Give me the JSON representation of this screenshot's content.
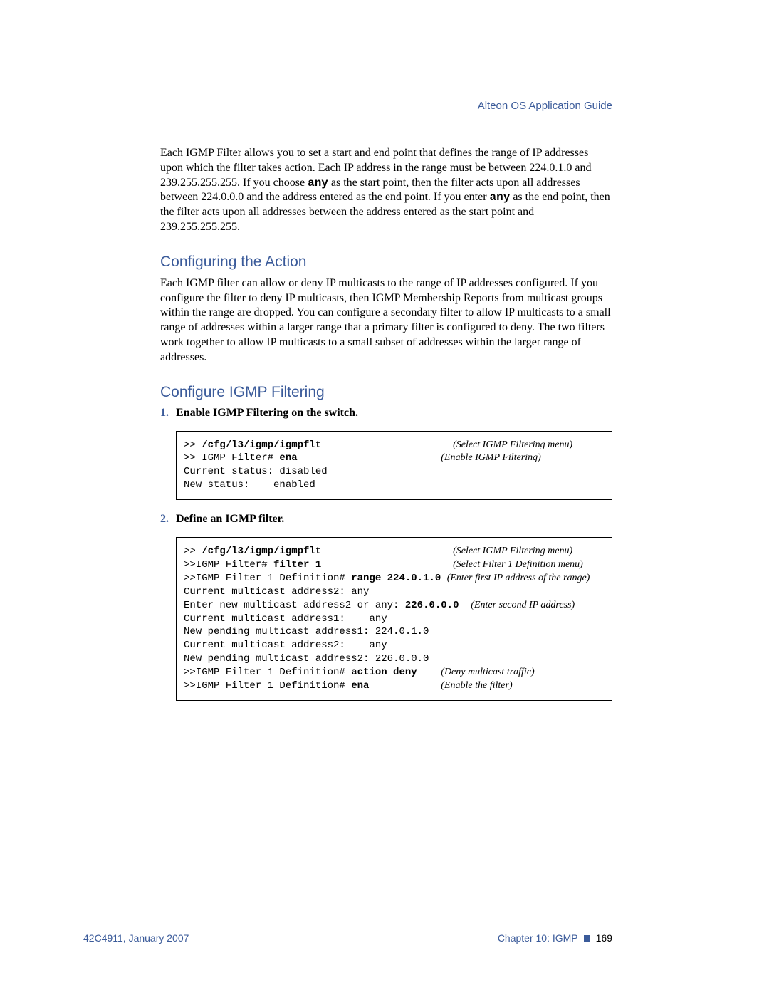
{
  "colors": {
    "accent": "#3b5b9a",
    "text": "#000000",
    "background": "#ffffff",
    "code_border": "#000000"
  },
  "typography": {
    "body_family": "Georgia, Times New Roman, serif",
    "heading_family": "Segoe UI, Arial, sans-serif",
    "code_family": "Courier New, monospace",
    "body_size_pt": 12,
    "heading_size_pt": 16,
    "code_size_pt": 10.5
  },
  "header": {
    "title": "Alteon OS  Application Guide"
  },
  "intro_para": {
    "pre1": "Each IGMP Filter allows you to set a start and end point that defines the range of IP addresses upon which the filter takes action. Each IP address in the range must be between 224.0.1.0 and 239.255.255.255. If you choose ",
    "b1": "any",
    "mid1": " as the start point, then the filter acts upon all addresses between 224.0.0.0 and the address entered as the end point. If you enter ",
    "b2": "any",
    "post1": " as the end point, then the filter acts upon all addresses between the address entered as the start point and 239.255.255.255."
  },
  "section1": {
    "heading": "Configuring the Action",
    "para": "Each IGMP filter can allow or deny IP multicasts to the range of IP addresses configured. If you configure the filter to deny IP multicasts, then IGMP Membership Reports from multicast groups within the range are dropped. You can configure a secondary filter to allow IP multicasts to a small range of addresses within a larger range that a primary filter is configured to deny. The two filters work together to allow IP multicasts to a small subset of addresses within the larger range of addresses."
  },
  "section2": {
    "heading": "Configure IGMP Filtering",
    "steps": {
      "s1": {
        "num": "1.",
        "text": "Enable IGMP Filtering on the switch."
      },
      "s2": {
        "num": "2.",
        "text": "Define an IGMP filter."
      }
    }
  },
  "code1": {
    "l1": {
      "pre": ">> ",
      "cmd": "/cfg/l3/igmp/igmpflt",
      "comment": "(Select IGMP Filtering menu)"
    },
    "l2": {
      "pre": ">> IGMP Filter# ",
      "cmd": "ena",
      "comment": "(Enable IGMP Filtering)"
    },
    "l3": {
      "text": "Current status: disabled"
    },
    "l4": {
      "text": "New status:    enabled"
    }
  },
  "code2": {
    "l1": {
      "pre": ">> ",
      "cmd": "/cfg/l3/igmp/igmpflt",
      "comment": "(Select IGMP Filtering menu)"
    },
    "l2": {
      "pre": ">>IGMP Filter# ",
      "cmd": "filter 1",
      "comment": "(Select Filter 1 Definition menu)"
    },
    "l3": {
      "pre": ">>IGMP Filter 1 Definition# ",
      "cmd": "range 224.0.1.0",
      "comment": "(Enter first IP address of the range)"
    },
    "l4": {
      "text": "Current multicast address2: any"
    },
    "l5": {
      "pre": "Enter new multicast address2 or any: ",
      "cmd": "226.0.0.0",
      "comment": "(Enter second IP address)"
    },
    "l6": {
      "text": "Current multicast address1:    any"
    },
    "l7": {
      "text": "New pending multicast address1: 224.0.1.0"
    },
    "l8": {
      "text": "Current multicast address2:    any"
    },
    "l9": {
      "text": "New pending multicast address2: 226.0.0.0"
    },
    "l10": {
      "pre": ">>IGMP Filter 1 Definition# ",
      "cmd": "action deny",
      "comment": "(Deny multicast traffic)"
    },
    "l11": {
      "pre": ">>IGMP Filter 1 Definition# ",
      "cmd": "ena",
      "comment": "(Enable the filter)"
    }
  },
  "footer": {
    "left": "42C4911, January 2007",
    "chapter": "Chapter 10:  IGMP",
    "page": "169"
  }
}
